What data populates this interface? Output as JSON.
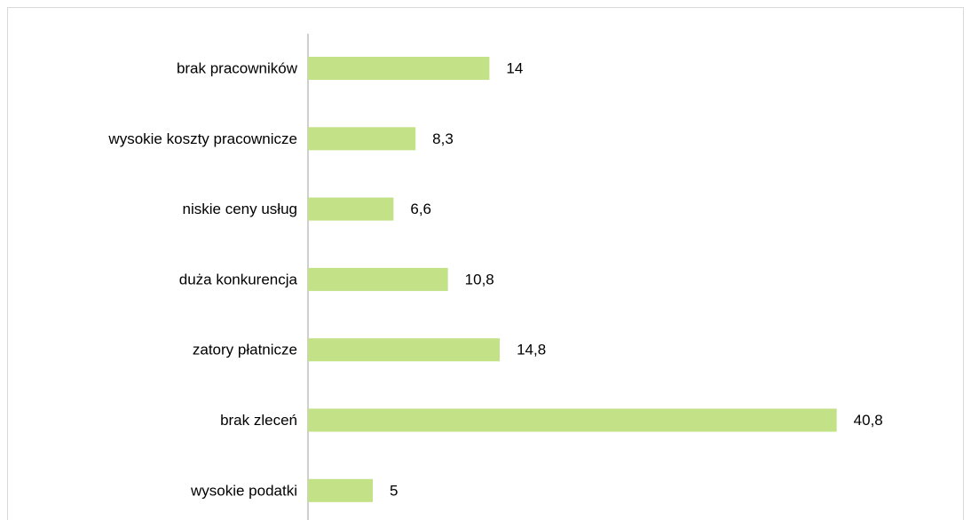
{
  "chart_data": {
    "type": "bar",
    "orientation": "horizontal",
    "categories": [
      "brak pracowników",
      "wysokie koszty pracownicze",
      "niskie ceny usług",
      "duża konkurencja",
      "zatory płatnicze",
      "brak zleceń",
      "wysokie podatki"
    ],
    "values": [
      14,
      8.3,
      6.6,
      10.8,
      14.8,
      40.8,
      5
    ],
    "value_labels": [
      "14",
      "8,3",
      "6,6",
      "10,8",
      "14,8",
      "40,8",
      "5"
    ],
    "color": "#c3e287",
    "xlim": [
      0,
      50
    ]
  }
}
